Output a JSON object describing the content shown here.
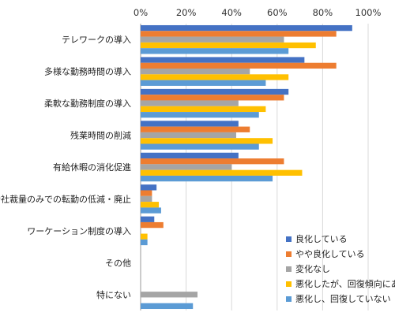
{
  "chart_data": {
    "type": "bar",
    "orientation": "horizontal",
    "xlim": [
      0,
      100
    ],
    "x_ticks": [
      "0%",
      "20%",
      "40%",
      "60%",
      "80%",
      "100%"
    ],
    "grid": true,
    "legend_position": "bottom-right",
    "categories": [
      "テレワークの導入",
      "多様な勤務時間の導入",
      "柔軟な勤務制度の導入",
      "残業時間の削減",
      "有給休暇の消化促進",
      "会社裁量のみでの転勤の低減・廃止",
      "ワーケーション制度の導入",
      "その他",
      "特にない"
    ],
    "series": [
      {
        "name": "良化している",
        "color": "#4472c4",
        "values": [
          93,
          72,
          65,
          43,
          43,
          7,
          6,
          0,
          0
        ]
      },
      {
        "name": "やや良化している",
        "color": "#ed7d31",
        "values": [
          86,
          86,
          63,
          48,
          63,
          5,
          10,
          0,
          0
        ]
      },
      {
        "name": "変化なし",
        "color": "#a5a5a5",
        "values": [
          63,
          48,
          43,
          42,
          40,
          5,
          0,
          0,
          25
        ]
      },
      {
        "name": "悪化したが、回復傾向にある",
        "color": "#ffc000",
        "values": [
          77,
          65,
          55,
          58,
          71,
          8,
          3,
          0,
          0
        ]
      },
      {
        "name": "悪化し、回復していない",
        "color": "#5b9bd5",
        "values": [
          65,
          55,
          52,
          52,
          58,
          9,
          3,
          0,
          23
        ]
      }
    ]
  }
}
